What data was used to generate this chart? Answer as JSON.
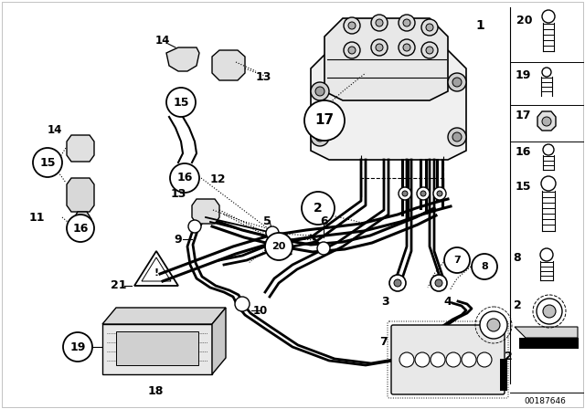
{
  "background_color": "#ffffff",
  "line_color": "#000000",
  "footer_text": "00187646",
  "figsize": [
    6.4,
    4.48
  ],
  "dpi": 100
}
